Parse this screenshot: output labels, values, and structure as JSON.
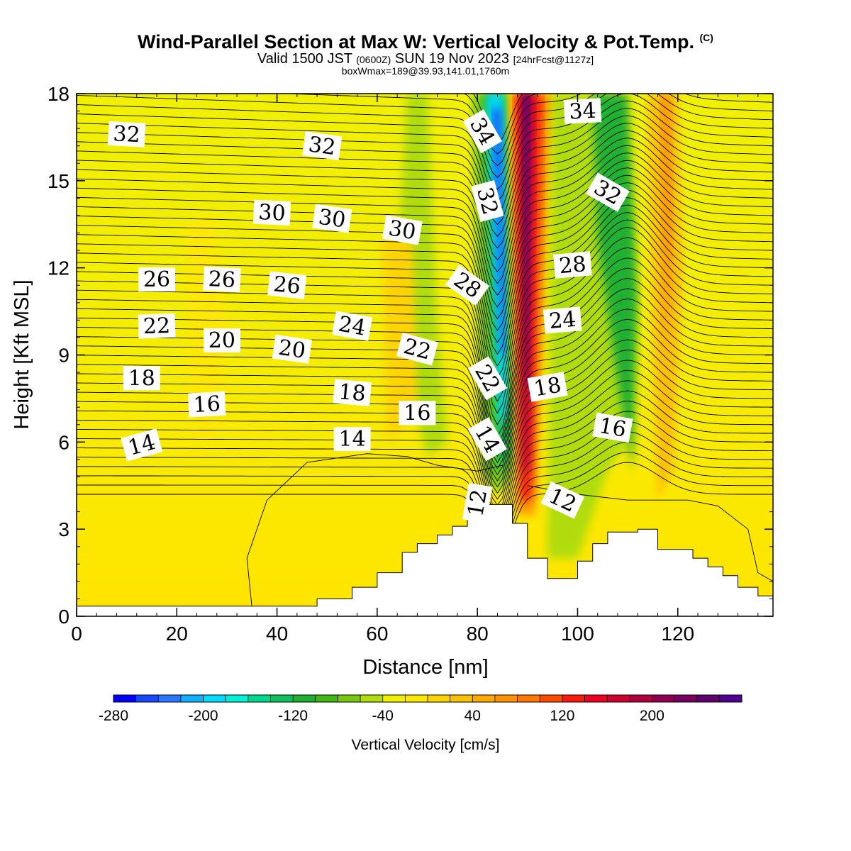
{
  "header": {
    "title": "Wind-Parallel Section at Max W: Vertical Velocity & Pot.Temp.",
    "copyright": "(C)",
    "valid_prefix": "Valid 1500 JST",
    "valid_utc": "(0600Z)",
    "valid_date": "SUN 19 Nov 2023",
    "forecast": "[24hrFcst@1127z]",
    "boxw": "boxWmax=189@39.93,141.01,1760m"
  },
  "chart_data": {
    "type": "heatmap",
    "xlabel": "Distance [nm]",
    "ylabel": "Height [Kft MSL]",
    "xlim": [
      0,
      139
    ],
    "ylim": [
      0,
      18
    ],
    "x_ticks": [
      0,
      20,
      40,
      60,
      80,
      100,
      120
    ],
    "y_ticks": [
      0,
      3,
      6,
      9,
      12,
      15,
      18
    ],
    "colorbar": {
      "label": "Vertical Velocity [cm/s]",
      "min": -280,
      "max": 280,
      "step": 20,
      "tick_labels": [
        -280,
        -200,
        -120,
        -40,
        40,
        120,
        200
      ],
      "colors": [
        "#0000ff",
        "#1a48ff",
        "#2a78ff",
        "#10b0ff",
        "#00dcff",
        "#00f0d8",
        "#00d890",
        "#10c060",
        "#20b030",
        "#40b818",
        "#78c810",
        "#b0dc10",
        "#f0f000",
        "#ffe800",
        "#ffd400",
        "#ffc000",
        "#ffaa00",
        "#ff9400",
        "#ff7800",
        "#ff4c00",
        "#ff1a10",
        "#f00020",
        "#d00030",
        "#b00040",
        "#900050",
        "#780060",
        "#600070",
        "#500090"
      ]
    },
    "theta_labels": [
      {
        "text": "32",
        "x": 10,
        "y": 16.6,
        "rot": 3
      },
      {
        "text": "32",
        "x": 49,
        "y": 16.2,
        "rot": 8
      },
      {
        "text": "30",
        "x": 39,
        "y": 13.9,
        "rot": 3
      },
      {
        "text": "30",
        "x": 51,
        "y": 13.7,
        "rot": 8
      },
      {
        "text": "30",
        "x": 65,
        "y": 13.3,
        "rot": 10
      },
      {
        "text": "26",
        "x": 16,
        "y": 11.6,
        "rot": 0
      },
      {
        "text": "26",
        "x": 29,
        "y": 11.6,
        "rot": 3
      },
      {
        "text": "26",
        "x": 42,
        "y": 11.4,
        "rot": 6
      },
      {
        "text": "22",
        "x": 16,
        "y": 10.0,
        "rot": -2
      },
      {
        "text": "20",
        "x": 29,
        "y": 9.5,
        "rot": 0
      },
      {
        "text": "20",
        "x": 43,
        "y": 9.2,
        "rot": 8
      },
      {
        "text": "24",
        "x": 55,
        "y": 10.0,
        "rot": 10
      },
      {
        "text": "22",
        "x": 68,
        "y": 9.2,
        "rot": 15
      },
      {
        "text": "18",
        "x": 13,
        "y": 8.2,
        "rot": 0
      },
      {
        "text": "16",
        "x": 26,
        "y": 7.3,
        "rot": -3
      },
      {
        "text": "18",
        "x": 55,
        "y": 7.7,
        "rot": 5
      },
      {
        "text": "16",
        "x": 68,
        "y": 7.0,
        "rot": 0
      },
      {
        "text": "14",
        "x": 13,
        "y": 5.9,
        "rot": -15
      },
      {
        "text": "14",
        "x": 55,
        "y": 6.1,
        "rot": 0
      },
      {
        "text": "34",
        "x": 81,
        "y": 16.7,
        "rot": 60
      },
      {
        "text": "32",
        "x": 82,
        "y": 14.3,
        "rot": 75
      },
      {
        "text": "28",
        "x": 78,
        "y": 11.4,
        "rot": 35
      },
      {
        "text": "22",
        "x": 82,
        "y": 8.2,
        "rot": 60
      },
      {
        "text": "14",
        "x": 82,
        "y": 6.1,
        "rot": 60
      },
      {
        "text": "12",
        "x": 80,
        "y": 3.9,
        "rot": -80
      },
      {
        "text": "34",
        "x": 101,
        "y": 17.4,
        "rot": -3
      },
      {
        "text": "32",
        "x": 106,
        "y": 14.6,
        "rot": 30
      },
      {
        "text": "28",
        "x": 99,
        "y": 12.1,
        "rot": -5
      },
      {
        "text": "24",
        "x": 97,
        "y": 10.2,
        "rot": -5
      },
      {
        "text": "18",
        "x": 94,
        "y": 7.9,
        "rot": -10
      },
      {
        "text": "16",
        "x": 107,
        "y": 6.5,
        "rot": 10
      },
      {
        "text": "12",
        "x": 97,
        "y": 4.0,
        "rot": 25
      }
    ]
  }
}
